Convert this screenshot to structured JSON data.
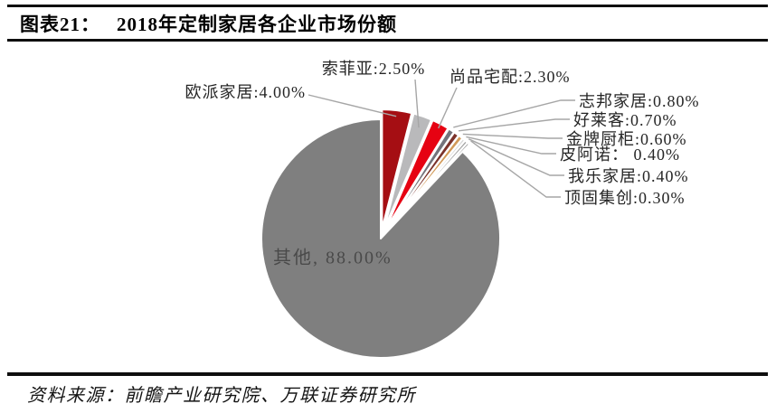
{
  "header": {
    "tag": "图表21：",
    "title": "2018年定制家居各企业市场份额"
  },
  "footer": {
    "source": "资料来源：前瞻产业研究院、万联证券研究所"
  },
  "colors": {
    "leader_line": "#a6a6a6",
    "slice_stroke": "#ffffff",
    "rule": "#0e0e0e"
  },
  "chart_data": {
    "type": "pie",
    "title": "2018年定制家居各企业市场份额",
    "unit": "%",
    "start_angle_deg": 0,
    "direction": "clockwise",
    "legend_position": "none",
    "slices": [
      {
        "id": "oppein",
        "name": "欧派家居",
        "value": 4.0,
        "label": "欧派家居:4.00%",
        "color": "#a50e13"
      },
      {
        "id": "sofia",
        "name": "索菲亚",
        "value": 2.5,
        "label": "索菲亚:2.50%",
        "color": "#b9b9bb"
      },
      {
        "id": "shangpin",
        "name": "尚品宅配",
        "value": 2.3,
        "label": "尚品宅配:2.30%",
        "color": "#e60212"
      },
      {
        "id": "zhibang",
        "name": "志邦家居",
        "value": 0.8,
        "label": "志邦家居:0.80%",
        "color": "#73737b"
      },
      {
        "id": "holike",
        "name": "好莱客",
        "value": 0.7,
        "label": "好莱客:0.70%",
        "color": "#7b322a"
      },
      {
        "id": "goldenhome",
        "name": "金牌厨柜",
        "value": 0.6,
        "label": "金牌厨柜:0.60%",
        "color": "#d29a58"
      },
      {
        "id": "piano",
        "name": "皮阿诺",
        "value": 0.4,
        "label": "皮阿诺： 0.40%",
        "color": "#d9d9d9"
      },
      {
        "id": "wole",
        "name": "我乐家居",
        "value": 0.4,
        "label": "我乐家居:0.40%",
        "color": "#9e9e9e"
      },
      {
        "id": "dinggu",
        "name": "顶固集创",
        "value": 0.3,
        "label": "顶固集创:0.30%",
        "color": "#4f4f4f"
      },
      {
        "id": "others",
        "name": "其他",
        "value": 88.0,
        "label": "其他, 88.00%",
        "color": "#7f7f7f"
      }
    ]
  }
}
